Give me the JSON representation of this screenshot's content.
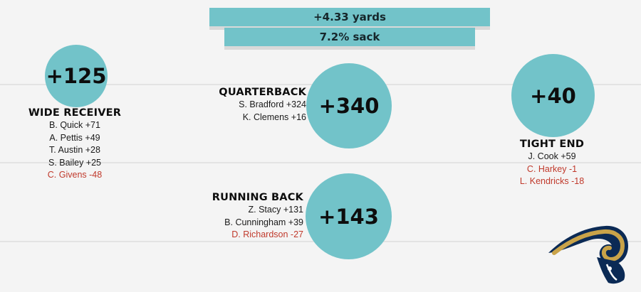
{
  "summary": {
    "yards": "+4.33 yards",
    "sack": "7.2% sack"
  },
  "positions": {
    "wide_receiver": {
      "total": "+125",
      "title": "WIDE RECEIVER",
      "players": [
        {
          "text": "B. Quick +71",
          "negative": false
        },
        {
          "text": "A. Pettis +49",
          "negative": false
        },
        {
          "text": "T. Austin +28",
          "negative": false
        },
        {
          "text": "S. Bailey +25",
          "negative": false
        },
        {
          "text": "C. Givens -48",
          "negative": true
        }
      ]
    },
    "quarterback": {
      "total": "+340",
      "title": "QUARTERBACK",
      "players": [
        {
          "text": "S. Bradford +324",
          "negative": false
        },
        {
          "text": "K. Clemens +16",
          "negative": false
        }
      ]
    },
    "running_back": {
      "total": "+143",
      "title": "RUNNING BACK",
      "players": [
        {
          "text": "Z. Stacy +131",
          "negative": false
        },
        {
          "text": "B. Cunningham +39",
          "negative": false
        },
        {
          "text": "D. Richardson -27",
          "negative": true
        }
      ]
    },
    "tight_end": {
      "total": "+40",
      "title": "TIGHT END",
      "players": [
        {
          "text": "J. Cook +59",
          "negative": false
        },
        {
          "text": "C. Harkey -1",
          "negative": true
        },
        {
          "text": "L. Kendricks -18",
          "negative": true
        }
      ]
    }
  },
  "logo": {
    "icon": "rams-helmet-logo"
  },
  "colors": {
    "accent": "#72c3c9",
    "negative": "#c0392b",
    "background": "#f4f4f4"
  }
}
